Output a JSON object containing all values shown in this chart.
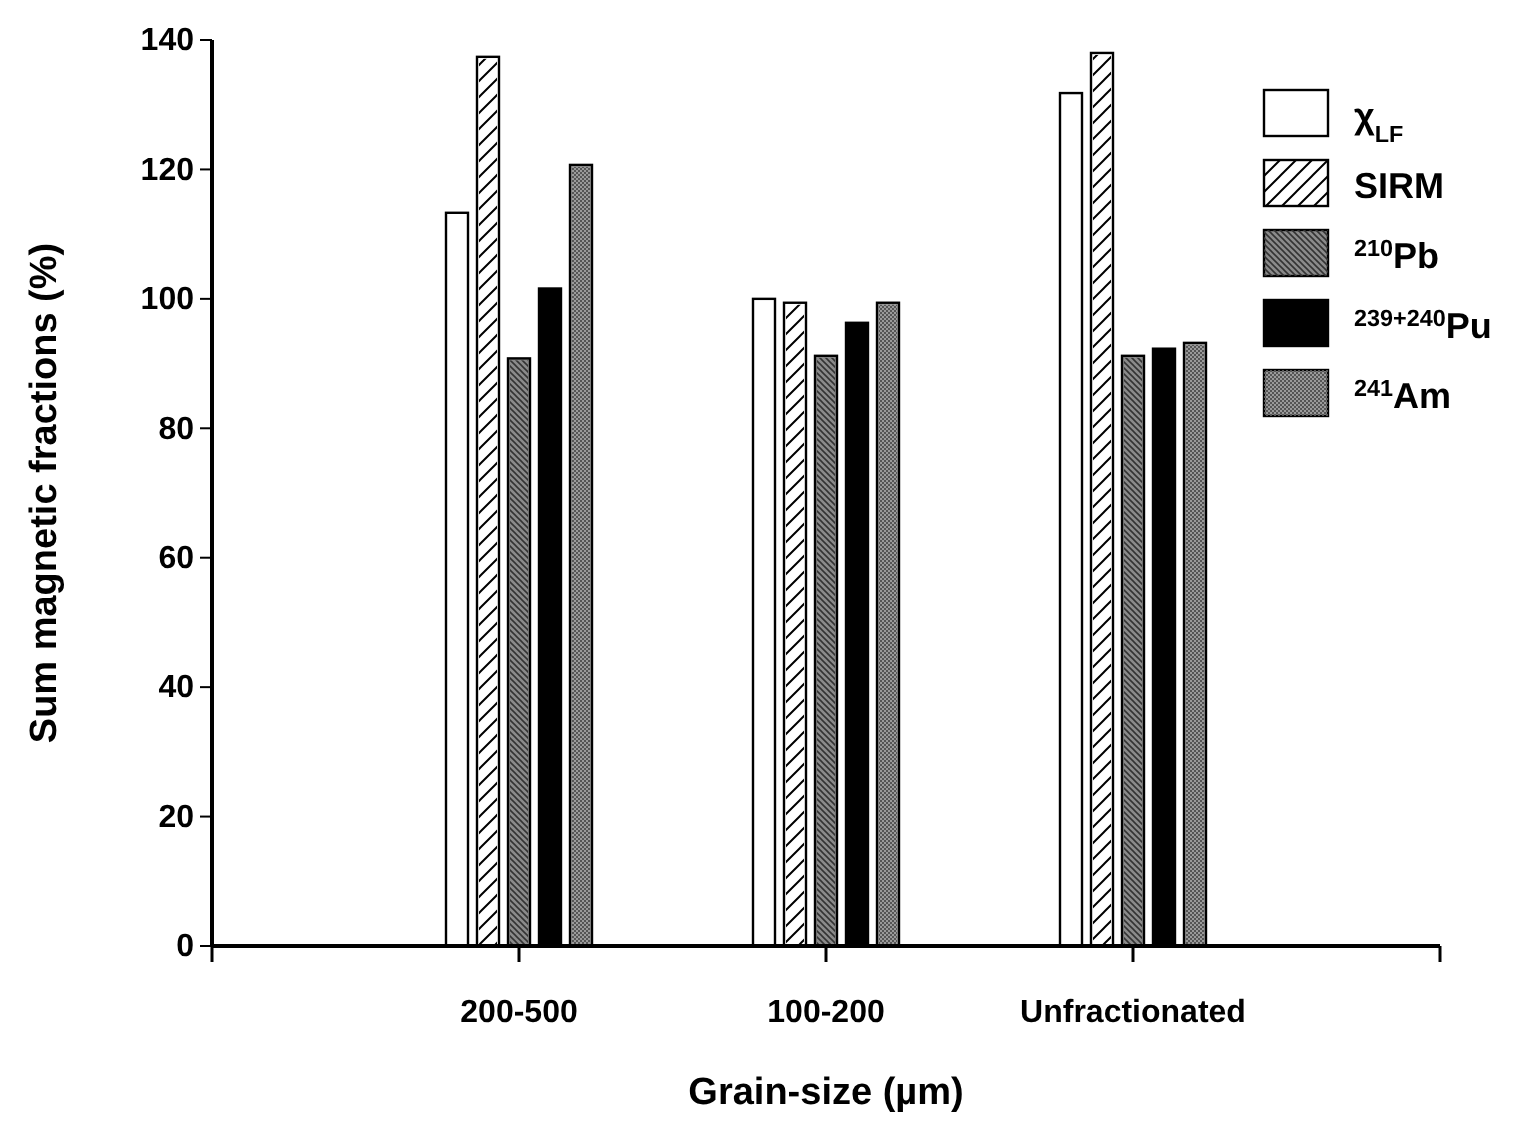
{
  "chart_data": {
    "type": "bar",
    "xlabel": "Grain-size (µm)",
    "ylabel": "Sum magnetic fractions (%)",
    "categories": [
      "200-500",
      "100-200",
      "Unfractionated"
    ],
    "series": [
      {
        "name": "χ$_{LF}$",
        "color": "#ffffff",
        "values": [
          113.3,
          100,
          131.8
        ]
      },
      {
        "name": "SIRM",
        "color": "#ffffff",
        "values": [
          137.4,
          99.4,
          138
        ]
      },
      {
        "name": "$^{210}$Pb",
        "color": "#8a8a8a",
        "values": [
          90.8,
          91.2,
          91.2
        ]
      },
      {
        "name": "$^{239+240}$Pu",
        "color": "#000000",
        "values": [
          101.6,
          96.3,
          92.3
        ]
      },
      {
        "name": "$^{241}$Am",
        "color": "#9a9a9a",
        "values": [
          120.7,
          99.4,
          93.2
        ]
      }
    ],
    "ylim": [
      0,
      140
    ],
    "yticks": [
      0,
      20,
      40,
      60,
      80,
      100,
      120,
      140
    ],
    "grid": false,
    "legend": "top right"
  }
}
